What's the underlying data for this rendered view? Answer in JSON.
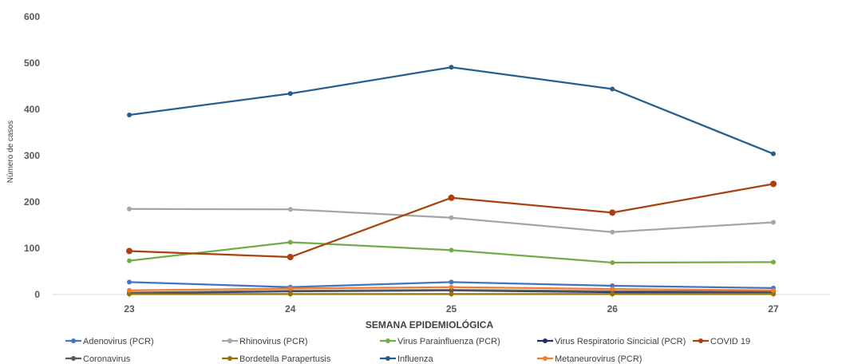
{
  "chart_data": {
    "type": "line",
    "title": "",
    "xlabel": "SEMANA EPIDEMIOLÓGICA",
    "ylabel": "Número de casos",
    "categories": [
      "23",
      "24",
      "25",
      "26",
      "27"
    ],
    "ylim": [
      0,
      600
    ],
    "yticks": [
      "0",
      "100",
      "200",
      "300",
      "400",
      "500",
      "600"
    ],
    "grid": false,
    "legend_position": "bottom",
    "series": [
      {
        "name": "Adenovirus (PCR)",
        "color": "#4472C4",
        "values": [
          27,
          16,
          27,
          19,
          14
        ]
      },
      {
        "name": "Rhinovirus (PCR)",
        "color": "#A5A5A5",
        "values": [
          185,
          184,
          166,
          135,
          156
        ]
      },
      {
        "name": "Virus Parainfluenza (PCR)",
        "color": "#70AD47",
        "values": [
          73,
          113,
          96,
          69,
          70
        ]
      },
      {
        "name": "Virus Respiratorio Sincicial (PCR)",
        "color": "#1F2A6B",
        "values": [
          3,
          7,
          9,
          5,
          5
        ]
      },
      {
        "name": "COVID 19",
        "color": "#A9410F",
        "values": [
          94,
          81,
          209,
          177,
          239
        ]
      },
      {
        "name": "Coronavirus",
        "color": "#595959",
        "values": [
          4,
          8,
          10,
          7,
          6
        ]
      },
      {
        "name": "Bordetella Parapertusis",
        "color": "#997300",
        "values": [
          1,
          1,
          1,
          1,
          1
        ]
      },
      {
        "name": "Influenza",
        "color": "#255E91",
        "values": [
          388,
          434,
          491,
          444,
          304
        ]
      },
      {
        "name": "Metaneurovirus (PCR)",
        "color": "#ED7D31",
        "values": [
          9,
          13,
          16,
          12,
          9
        ]
      }
    ]
  }
}
